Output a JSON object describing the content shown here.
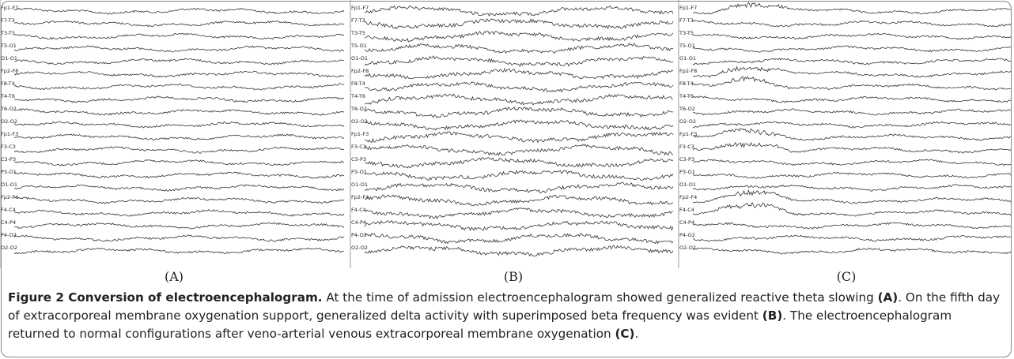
{
  "figure": {
    "panels": [
      {
        "label": "(A)",
        "channels": [
          "Fp1-F7",
          "F7-T3",
          "T3-T5",
          "T5-O1",
          "O1-O1",
          "Fp2-F8",
          "F8-T4",
          "T4-T6",
          "T6-O2",
          "O2-O2",
          "Fp1-F3",
          "F3-C3",
          "C3-P3",
          "P3-O1",
          "O1-O1",
          "Fp2-F4",
          "F4-C4",
          "C4-P4",
          "P4-O2",
          "O2-O2"
        ]
      },
      {
        "label": "(B)",
        "channels": [
          "Fp1-F7",
          "F7-T3",
          "T3-T5",
          "T5-O1",
          "O1-O1",
          "Fp2-F8",
          "F8-T4",
          "T4-T6",
          "T6-O2",
          "O2-O2",
          "Fp1-F3",
          "F3-C3",
          "C3-P3",
          "P3-O1",
          "O1-O1",
          "Fp2-F4",
          "F4-C4",
          "C4-P4",
          "P4-O2",
          "O2-O2"
        ]
      },
      {
        "label": "(C)",
        "channels": [
          "Fp1-F7",
          "F7-T3",
          "T3-T5",
          "T5-O1",
          "O1-O1",
          "Fp2-F8",
          "F8-T4",
          "T4-T6",
          "T6-O2",
          "O2-O2",
          "Fp1-F3",
          "F3-C3",
          "C3-P3",
          "P3-O1",
          "O1-O1",
          "Fp2-F4",
          "F4-C4",
          "C4-P4",
          "P4-O2",
          "O2-O2"
        ]
      }
    ]
  },
  "caption": {
    "title": "Figure 2 Conversion of electroencephalogram.",
    "parts": [
      {
        "text": " At the time of admission electroencephalogram showed generalized reactive theta slowing ",
        "bold": false
      },
      {
        "text": "(A)",
        "bold": true
      },
      {
        "text": ". On the fifth day of extracorporeal membrane oxygenation support, generalized delta activity with superimposed beta frequency was evident ",
        "bold": false
      },
      {
        "text": "(B)",
        "bold": true
      },
      {
        "text": ". The electroencephalogram returned to normal configurations after veno-arterial venous extracorporeal membrane oxygenation ",
        "bold": false
      },
      {
        "text": "(C)",
        "bold": true
      },
      {
        "text": ".",
        "bold": false
      }
    ]
  }
}
